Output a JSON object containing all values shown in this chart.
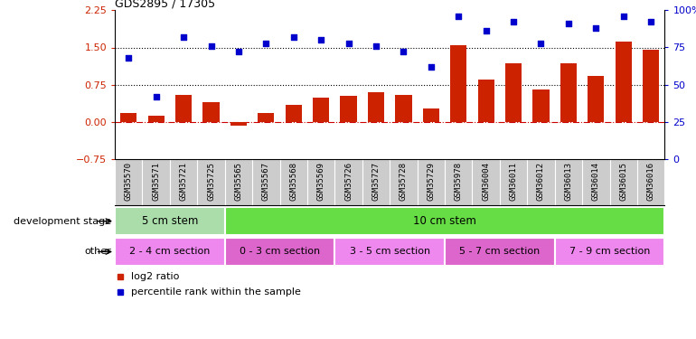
{
  "title": "GDS2895 / 17305",
  "samples": [
    "GSM35570",
    "GSM35571",
    "GSM35721",
    "GSM35725",
    "GSM35565",
    "GSM35567",
    "GSM35568",
    "GSM35569",
    "GSM35726",
    "GSM35727",
    "GSM35728",
    "GSM35729",
    "GSM35978",
    "GSM36004",
    "GSM36011",
    "GSM36012",
    "GSM36013",
    "GSM36014",
    "GSM36015",
    "GSM36016"
  ],
  "log2_ratio": [
    0.18,
    0.12,
    0.55,
    0.4,
    -0.08,
    0.18,
    0.35,
    0.5,
    0.52,
    0.6,
    0.55,
    0.28,
    1.55,
    0.85,
    1.18,
    0.65,
    1.18,
    0.92,
    1.62,
    1.46
  ],
  "percentile": [
    68,
    42,
    82,
    76,
    72,
    78,
    82,
    80,
    78,
    76,
    72,
    62,
    96,
    86,
    92,
    78,
    91,
    88,
    96,
    92
  ],
  "bar_color": "#cc2200",
  "dot_color": "#0000cc",
  "hline_color": "#cc0000",
  "dotline1": 1.5,
  "dotline2": 0.75,
  "ylim_left": [
    -0.75,
    2.25
  ],
  "ylim_right": [
    0,
    100
  ],
  "yticks_left": [
    -0.75,
    0.0,
    0.75,
    1.5,
    2.25
  ],
  "yticks_right": [
    0,
    25,
    50,
    75,
    100
  ],
  "right_ytick_labels": [
    "0",
    "25",
    "50",
    "75",
    "100%"
  ],
  "dev_stage_groups": [
    {
      "label": "5 cm stem",
      "start": 0,
      "end": 4,
      "color": "#aaddaa"
    },
    {
      "label": "10 cm stem",
      "start": 4,
      "end": 20,
      "color": "#66dd44"
    }
  ],
  "other_groups": [
    {
      "label": "2 - 4 cm section",
      "start": 0,
      "end": 4,
      "color": "#ee88ee"
    },
    {
      "label": "0 - 3 cm section",
      "start": 4,
      "end": 8,
      "color": "#dd66cc"
    },
    {
      "label": "3 - 5 cm section",
      "start": 8,
      "end": 12,
      "color": "#ee88ee"
    },
    {
      "label": "5 - 7 cm section",
      "start": 12,
      "end": 16,
      "color": "#dd66cc"
    },
    {
      "label": "7 - 9 cm section",
      "start": 16,
      "end": 20,
      "color": "#ee88ee"
    }
  ],
  "legend_items": [
    {
      "label": "log2 ratio",
      "color": "#cc2200"
    },
    {
      "label": "percentile rank within the sample",
      "color": "#0000cc"
    }
  ],
  "dev_stage_label": "development stage",
  "other_label": "other",
  "xticklabel_bg": "#cccccc",
  "xtick_sep_color": "#999999"
}
